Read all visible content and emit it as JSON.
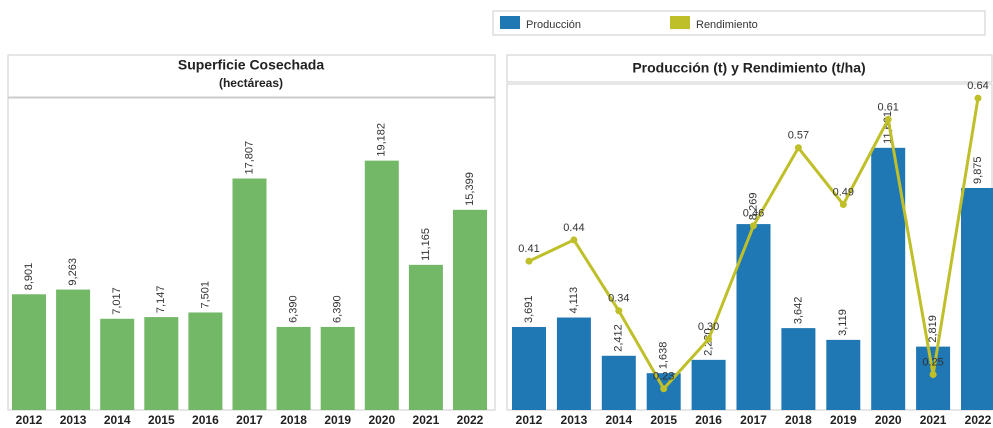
{
  "chart_data": [
    {
      "type": "bar",
      "title": "Superficie Cosechada",
      "subtitle": "(hectáreas)",
      "categories": [
        "2012",
        "2013",
        "2014",
        "2015",
        "2016",
        "2017",
        "2018",
        "2019",
        "2020",
        "2021",
        "2022"
      ],
      "values": [
        8901,
        9263,
        7017,
        7147,
        7501,
        17807,
        6390,
        6390,
        19182,
        11165,
        15399
      ],
      "value_labels": [
        "8,901",
        "9,263",
        "7,017",
        "7,147",
        "7,501",
        "17,807",
        "6,390",
        "6,390",
        "19,182",
        "11,165",
        "15,399"
      ],
      "color": "#72b866",
      "ylim": [
        0,
        24000
      ]
    },
    {
      "type": "combo",
      "title": "Producción (t) y Rendimiento (t/ha)",
      "categories": [
        "2012",
        "2013",
        "2014",
        "2015",
        "2016",
        "2017",
        "2018",
        "2019",
        "2020",
        "2021",
        "2022"
      ],
      "series": [
        {
          "name": "Producción",
          "type": "bar",
          "color": "#1f77b4",
          "values": [
            3691,
            4113,
            2412,
            1638,
            2230,
            8269,
            3642,
            3119,
            11661,
            2819,
            9875
          ],
          "value_labels": [
            "3,691",
            "4,113",
            "2,412",
            "1,638",
            "2,230",
            "8,269",
            "3,642",
            "3,119",
            "11,661",
            "2,819",
            "9,875"
          ]
        },
        {
          "name": "Rendimiento",
          "type": "line",
          "axis": "y2",
          "color": "#bfbf2a",
          "values": [
            0.41,
            0.44,
            0.34,
            0.23,
            0.3,
            0.46,
            0.57,
            0.49,
            0.61,
            0.25,
            0.64
          ],
          "value_labels": [
            "0.41",
            "0.44",
            "0.34",
            "0.23",
            "0.30",
            "0.46",
            "0.57",
            "0.49",
            "0.61",
            "0.25",
            "0.64"
          ]
        }
      ],
      "ylim": [
        0,
        14500
      ],
      "y2lim": [
        0.2,
        0.66
      ]
    }
  ]
}
